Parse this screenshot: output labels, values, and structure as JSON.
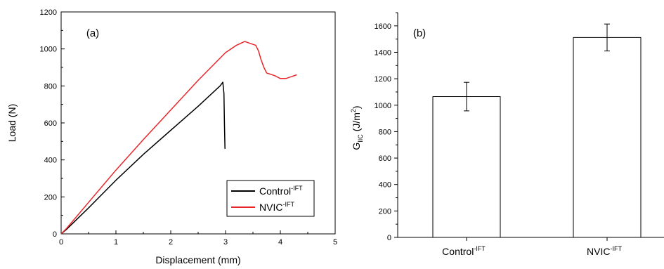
{
  "chart_data": [
    {
      "type": "line",
      "panel_label": "(a)",
      "xlabel": "Displacement (mm)",
      "ylabel": "Load (N)",
      "xlim": [
        0,
        5
      ],
      "ylim": [
        0,
        1200
      ],
      "xticks": [
        "0",
        "1",
        "2",
        "3",
        "4",
        "5"
      ],
      "yticks": [
        "0",
        "200",
        "400",
        "600",
        "800",
        "1000",
        "1200"
      ],
      "legend_position": "bottom-right",
      "series": [
        {
          "name": "Control",
          "name_sup": "-IFT",
          "color": "#000000",
          "x": [
            0,
            0.1,
            0.5,
            1.0,
            1.5,
            2.0,
            2.5,
            2.9,
            2.95,
            2.97,
            2.98,
            2.99
          ],
          "y": [
            0,
            25,
            140,
            290,
            430,
            560,
            690,
            800,
            820,
            760,
            600,
            460
          ]
        },
        {
          "name": "NVIC",
          "name_sup": "-IFT",
          "color": "#e8262a",
          "x": [
            0,
            0.1,
            0.5,
            1.0,
            1.5,
            2.0,
            2.5,
            3.0,
            3.2,
            3.35,
            3.45,
            3.55,
            3.6,
            3.65,
            3.7,
            3.75,
            3.8,
            3.9,
            4.0,
            4.1,
            4.2,
            4.3
          ],
          "y": [
            0,
            30,
            170,
            345,
            510,
            670,
            830,
            980,
            1020,
            1040,
            1030,
            1020,
            990,
            940,
            900,
            870,
            865,
            855,
            840,
            840,
            850,
            860
          ]
        }
      ]
    },
    {
      "type": "bar",
      "panel_label": "(b)",
      "ylabel": "G",
      "ylabel_sub": "IIC",
      "ylabel_unit_pre": " (J/m",
      "ylabel_unit_sup": "2",
      "ylabel_unit_post": ")",
      "ylim": [
        0,
        1700
      ],
      "yticks": [
        "0",
        "200",
        "400",
        "600",
        "800",
        "1000",
        "1200",
        "1400",
        "1600"
      ],
      "categories": [
        {
          "name": "Control",
          "sup": "-IFT"
        },
        {
          "name": "NVIC",
          "sup": "-IFT"
        }
      ],
      "values": [
        1065,
        1512
      ],
      "errors": [
        108,
        102
      ]
    }
  ]
}
